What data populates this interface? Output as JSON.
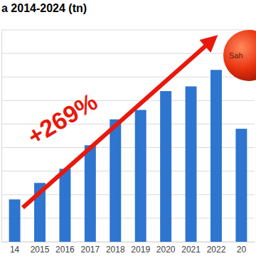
{
  "chart_data": {
    "type": "bar",
    "title": "a 2014-2024 (tn)",
    "categories": [
      "14",
      "2015",
      "2016",
      "2017",
      "2018",
      "2019",
      "2020",
      "2021",
      "2022",
      "20"
    ],
    "values": [
      1.8,
      2.5,
      3.1,
      4.1,
      5.2,
      5.6,
      6.4,
      6.6,
      7.3,
      4.8
    ],
    "color": "#2e75d0",
    "ylim": [
      0,
      9
    ],
    "yticks": [
      0,
      1,
      2,
      3,
      4,
      5,
      6,
      7,
      8,
      9
    ],
    "grid": true,
    "tick_labels": "x",
    "annotations": [
      "+269%",
      "Sah"
    ]
  }
}
